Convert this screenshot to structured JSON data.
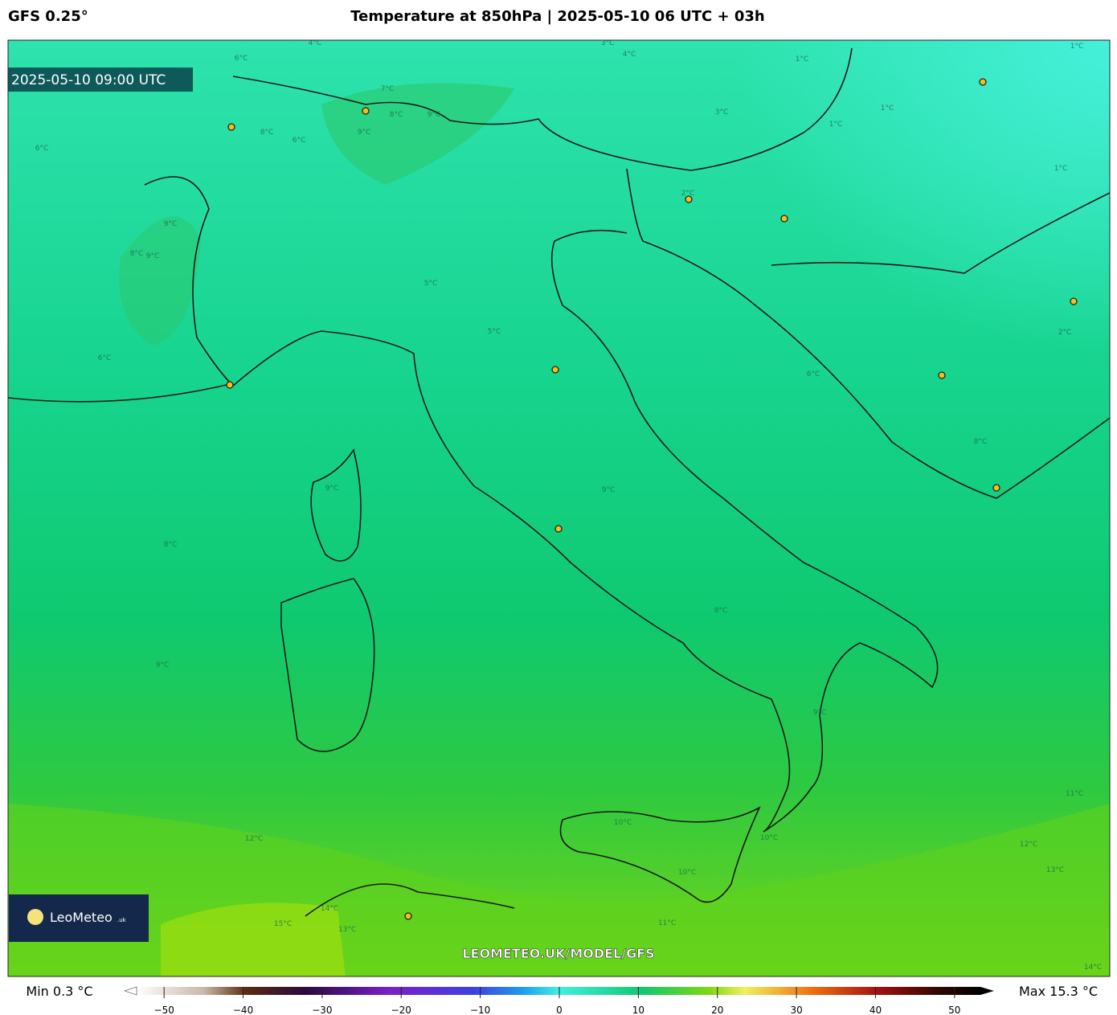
{
  "header": {
    "model": "GFS 0.25°",
    "title": "Temperature at 850hPa | 2025-05-10 06 UTC + 03h"
  },
  "map": {
    "timestamp": "2025-05-10 09:00 UTC",
    "logo": "LeoMeteo",
    "logo_suffix": ".uk",
    "watermark": "LEOMETEO.UK/MODEL/GFS",
    "contour_labels": [
      "4°C",
      "3°C",
      "4°C",
      "1°C",
      "1°C",
      "6°C",
      "7°C",
      "9°C",
      "8°C",
      "9°C",
      "8°C",
      "6°C",
      "6°C",
      "1°C",
      "1°C",
      "3°C",
      "1°C",
      "2°C",
      "9°C",
      "9°C",
      "8°C",
      "5°C",
      "5°C",
      "2°C",
      "6°C",
      "6°C",
      "8°C",
      "9°C",
      "9°C",
      "8°C",
      "8°C",
      "9°C",
      "9°C",
      "12°C",
      "10°C",
      "10°C",
      "10°C",
      "11°C",
      "13°C",
      "14°C",
      "15°C",
      "12°C",
      "13°C",
      "11°C",
      "14°C"
    ]
  },
  "colorbar": {
    "min_label": "Min 0.3 °C",
    "max_label": "Max 15.3 °C",
    "range": [
      -55,
      55
    ],
    "ticks": [
      {
        "value": -50,
        "label": "−50"
      },
      {
        "value": -40,
        "label": "−40"
      },
      {
        "value": -30,
        "label": "−30"
      },
      {
        "value": -20,
        "label": "−20"
      },
      {
        "value": -10,
        "label": "−10"
      },
      0,
      10,
      20,
      30,
      40,
      50
    ]
  }
}
